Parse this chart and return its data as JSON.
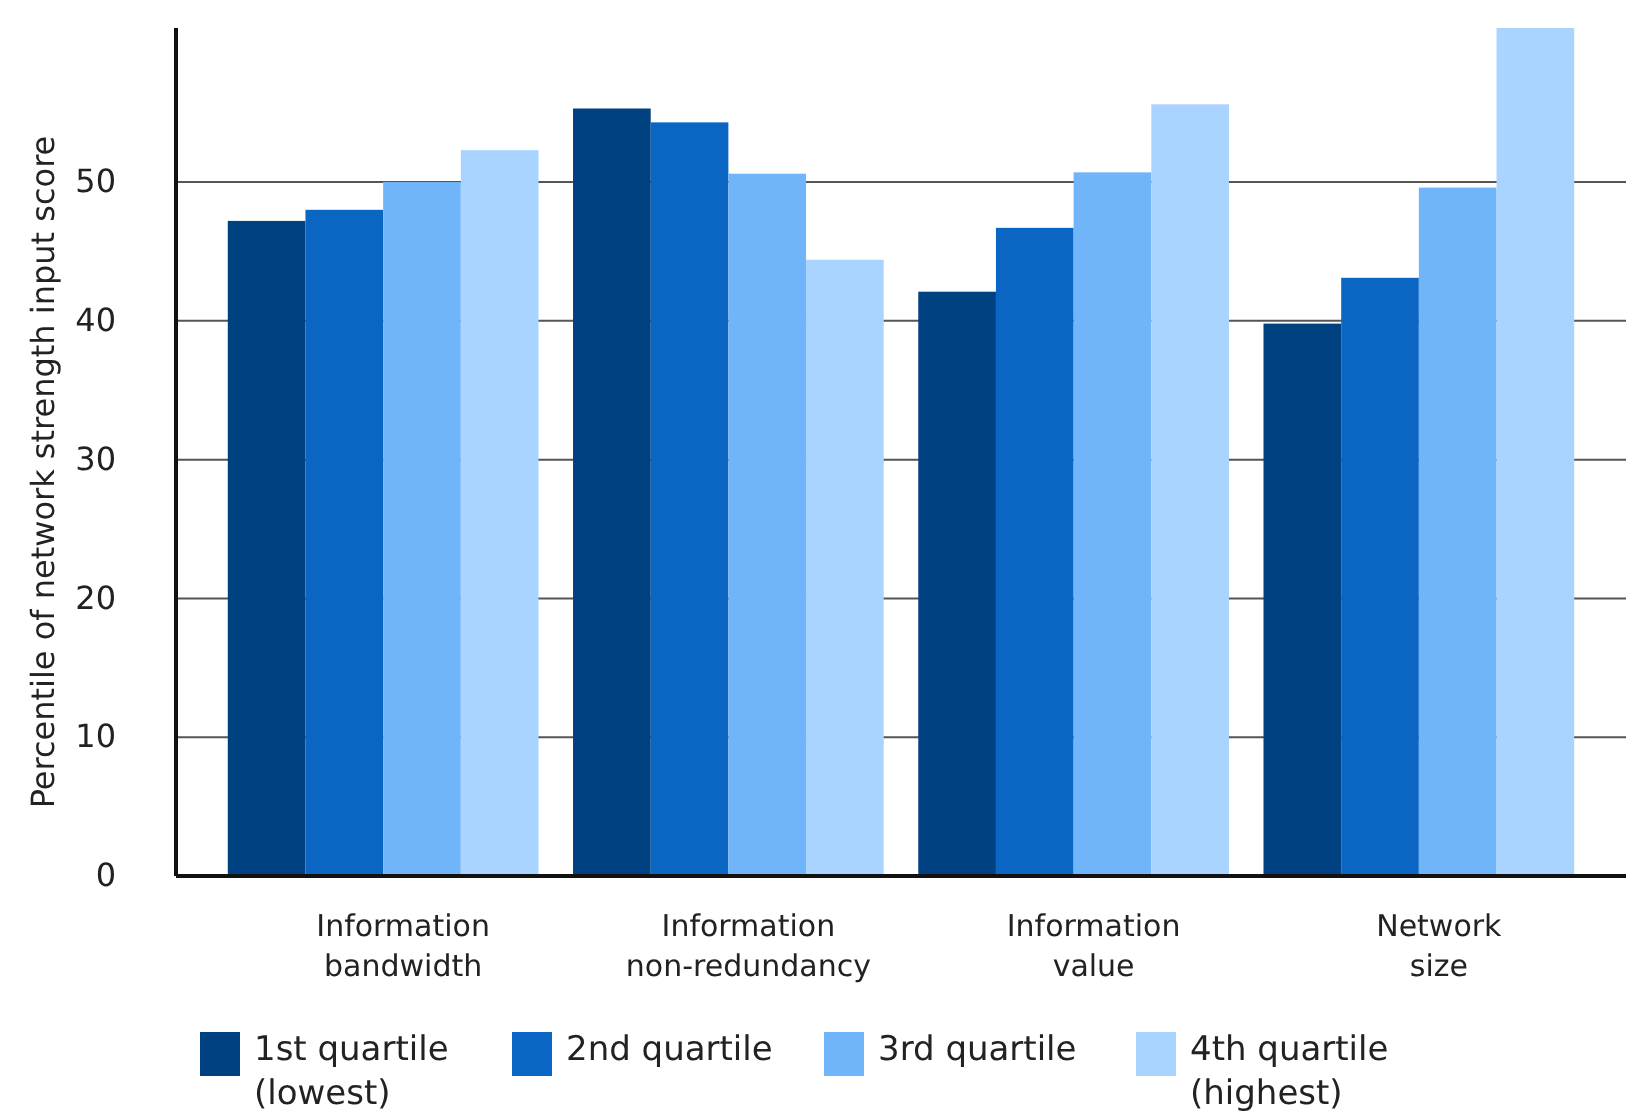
{
  "chart_data": {
    "type": "bar",
    "ylabel": "Percentile of network strength input score",
    "categories": [
      "Information bandwidth",
      "Information non-redundancy",
      "Information value",
      "Network size"
    ],
    "series": [
      {
        "name": "1st quartile (lowest)",
        "color": "#004182",
        "values": [
          47.2,
          55.3,
          42.1,
          39.8
        ]
      },
      {
        "name": "2nd quartile",
        "color": "#0a66c2",
        "values": [
          48.0,
          54.3,
          46.7,
          43.1
        ]
      },
      {
        "name": "3rd quartile",
        "color": "#70b5f9",
        "values": [
          50.0,
          50.6,
          50.7,
          49.6
        ]
      },
      {
        "name": "4th quartile (highest)",
        "color": "#a8d4ff",
        "values": [
          52.3,
          44.4,
          55.6,
          61.1
        ]
      }
    ],
    "ylim": [
      0,
      61.1
    ],
    "yticks": [
      0,
      10,
      20,
      30,
      40,
      50
    ],
    "grid": "y",
    "legend": "bottom"
  }
}
